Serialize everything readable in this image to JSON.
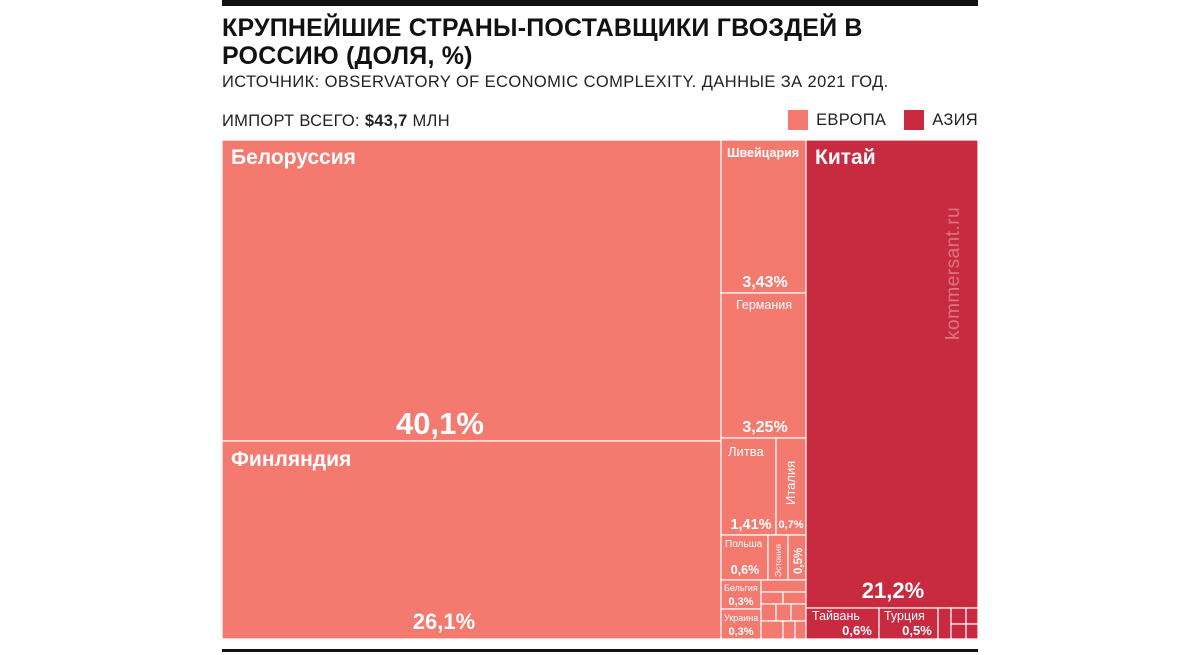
{
  "title": "КРУПНЕЙШИЕ СТРАНЫ-ПОСТАВЩИКИ ГВОЗДЕЙ В РОССИЮ (ДОЛЯ, %)",
  "subtitle": "ИСТОЧНИК: OBSERVATORY OF ECONOMIC COMPLEXITY. ДАННЫЕ ЗА 2021 ГОД.",
  "total": {
    "label": "ИМПОРТ ВСЕГО:",
    "value": "$43,7",
    "unit": "МЛН"
  },
  "legend": [
    {
      "label": "ЕВРОПА",
      "color": "#f47a70"
    },
    {
      "label": "АЗИЯ",
      "color": "#c82a40"
    }
  ],
  "watermark": "kommersant.ru",
  "chart_data": {
    "type": "treemap",
    "title": "КРУПНЕЙШИЕ СТРАНЫ-ПОСТАВЩИКИ ГВОЗДЕЙ В РОССИЮ (ДОЛЯ, %)",
    "unit": "%",
    "groups": [
      {
        "name": "ЕВРОПА",
        "color": "#f47a70",
        "items": [
          {
            "name": "Белоруссия",
            "value": 40.1,
            "label": "40,1%"
          },
          {
            "name": "Финляндия",
            "value": 26.1,
            "label": "26,1%"
          },
          {
            "name": "Швейцария",
            "value": 3.43,
            "label": "3,43%"
          },
          {
            "name": "Германия",
            "value": 3.25,
            "label": "3,25%"
          },
          {
            "name": "Литва",
            "value": 1.41,
            "label": "1,41%"
          },
          {
            "name": "Италия",
            "value": 0.7,
            "label": "0,7%"
          },
          {
            "name": "Польша",
            "value": 0.6,
            "label": "0,6%"
          },
          {
            "name": "Эстония",
            "value": 0.5,
            "label": "0,5%"
          },
          {
            "name": "Бельгия",
            "value": 0.3,
            "label": "0,3%"
          },
          {
            "name": "Украина",
            "value": 0.3,
            "label": "0,3%"
          }
        ]
      },
      {
        "name": "АЗИЯ",
        "color": "#c82a40",
        "items": [
          {
            "name": "Китай",
            "value": 21.2,
            "label": "21,2%"
          },
          {
            "name": "Тайвань",
            "value": 0.6,
            "label": "0,6%"
          },
          {
            "name": "Турция",
            "value": 0.5,
            "label": "0,5%"
          }
        ]
      }
    ]
  }
}
